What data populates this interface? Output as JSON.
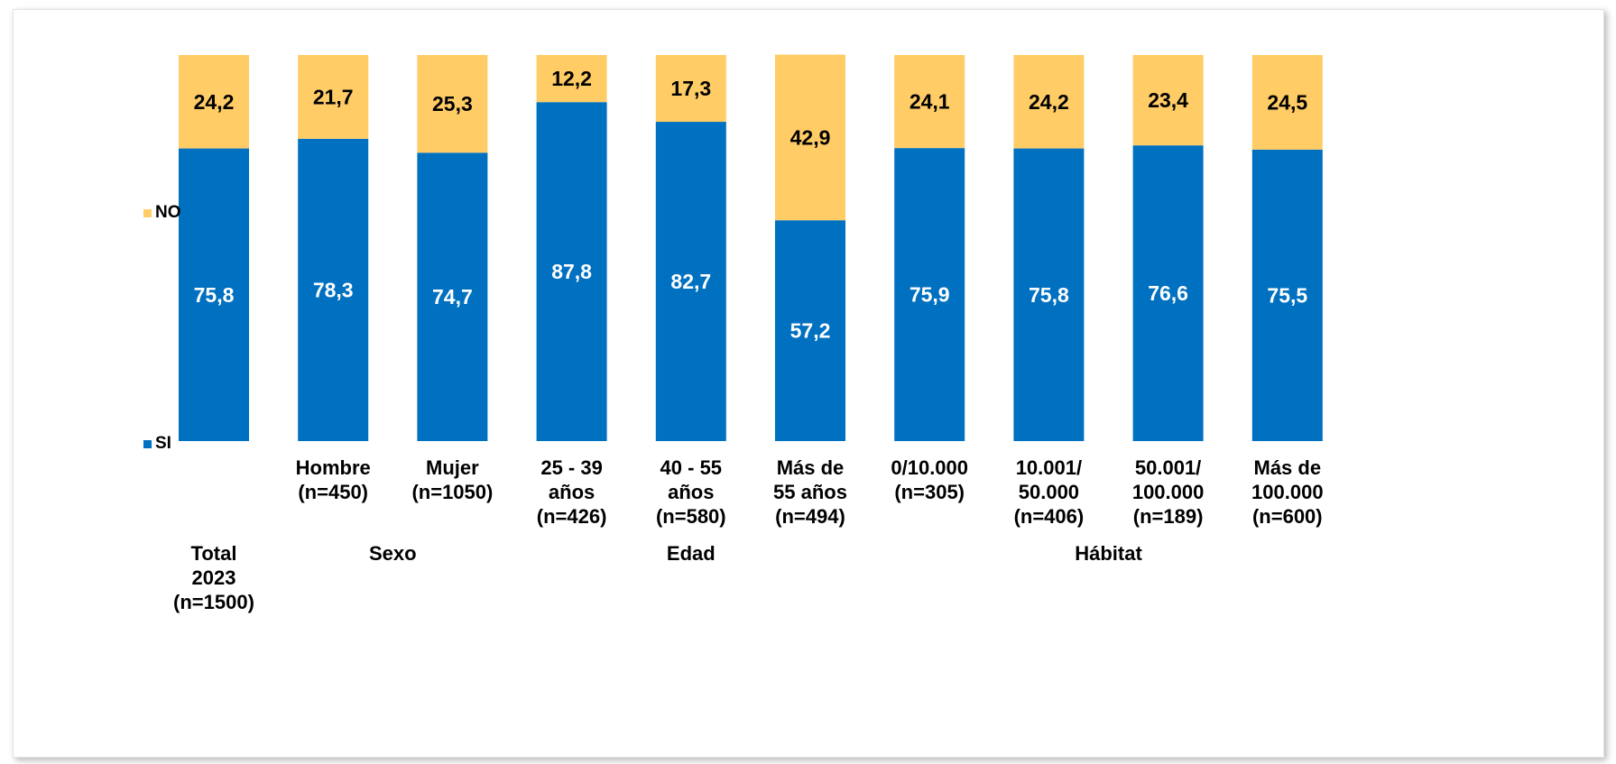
{
  "chart_data": {
    "type": "bar",
    "stacked": true,
    "legend_position": "left",
    "grid": false,
    "ylim": [
      0,
      100
    ],
    "colors": {
      "SI": "#0070C0",
      "NO": "#FFCC66"
    },
    "categories": [
      {
        "label": [
          "Total",
          "2023",
          "(n=1500)"
        ],
        "row": "group"
      },
      {
        "label": [
          "Hombre",
          "(n=450)"
        ],
        "row": "top"
      },
      {
        "label": [
          "Mujer",
          "(n=1050)"
        ],
        "row": "top"
      },
      {
        "label": [
          "25 - 39",
          "años",
          "(n=426)"
        ],
        "row": "top"
      },
      {
        "label": [
          "40 - 55",
          "años",
          "(n=580)"
        ],
        "row": "top"
      },
      {
        "label": [
          "Más de",
          "55 años",
          "(n=494)"
        ],
        "row": "top"
      },
      {
        "label": [
          "0/10.000",
          "(n=305)"
        ],
        "row": "top"
      },
      {
        "label": [
          "10.001/",
          "50.000",
          "(n=406)"
        ],
        "row": "top"
      },
      {
        "label": [
          "50.001/",
          "100.000",
          "(n=189)"
        ],
        "row": "top"
      },
      {
        "label": [
          "Más de",
          "100.000",
          "(n=600)"
        ],
        "row": "top"
      }
    ],
    "groups": [
      {
        "label": "Sexo",
        "from": 1,
        "to": 2
      },
      {
        "label": "Edad",
        "from": 3,
        "to": 5
      },
      {
        "label": "Hábitat",
        "from": 6,
        "to": 9
      }
    ],
    "series": [
      {
        "name": "SI",
        "values": [
          75.8,
          78.3,
          74.7,
          87.8,
          82.7,
          57.2,
          75.9,
          75.8,
          76.6,
          75.5
        ],
        "labels": [
          "75,8",
          "78,3",
          "74,7",
          "87,8",
          "82,7",
          "57,2",
          "75,9",
          "75,8",
          "76,6",
          "75,5"
        ]
      },
      {
        "name": "NO",
        "values": [
          24.2,
          21.7,
          25.3,
          12.2,
          17.3,
          42.9,
          24.1,
          24.2,
          23.4,
          24.5
        ],
        "labels": [
          "24,2",
          "21,7",
          "25,3",
          "12,2",
          "17,3",
          "42,9",
          "24,1",
          "24,2",
          "23,4",
          "24,5"
        ]
      }
    ]
  },
  "legend": {
    "no_label": "NO",
    "si_label": "SI"
  }
}
